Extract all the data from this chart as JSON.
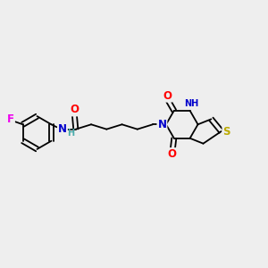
{
  "bg_color": "#eeeeee",
  "atom_colors": {
    "C": "#000000",
    "N": "#0000cc",
    "O": "#ff0000",
    "S": "#bbaa00",
    "F": "#ee00ee",
    "H": "#4aabab"
  },
  "lw": 1.3,
  "font_size_atom": 8.5,
  "font_size_small": 7.0,
  "xlim": [
    0,
    10
  ],
  "ylim": [
    2,
    8
  ]
}
